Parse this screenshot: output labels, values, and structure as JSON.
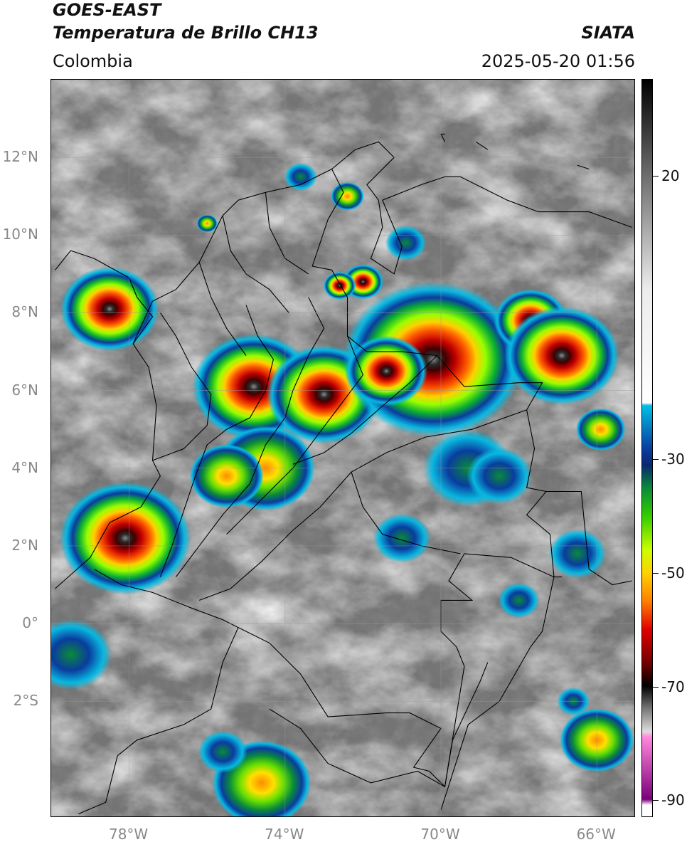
{
  "header": {
    "satellite": "GOES-EAST",
    "product": "Temperatura de Brillo CH13",
    "region": "Colombia",
    "organization": "SIATA",
    "timestamp": "2025-05-20 01:56"
  },
  "axes": {
    "lat_labels": [
      "12°N",
      "10°N",
      "8°N",
      "6°N",
      "4°N",
      "2°N",
      "0°",
      "2°S"
    ],
    "lon_labels": [
      "78°W",
      "74°W",
      "70°W",
      "66°W"
    ],
    "lat_range": [
      -5,
      14
    ],
    "lon_range": [
      -80,
      -65
    ]
  },
  "colorbar": {
    "labels": [
      "20",
      "-30",
      "-50",
      "-70",
      "-90"
    ],
    "values": [
      20,
      -30,
      -50,
      -70,
      -90
    ],
    "range": [
      -93,
      37
    ],
    "gradient_stops": [
      {
        "t": 37,
        "color": "#000000"
      },
      {
        "t": 20,
        "color": "#6e6e6e"
      },
      {
        "t": 0,
        "color": "#ececec"
      },
      {
        "t": -20,
        "color": "#ffffff"
      },
      {
        "t": -20.5,
        "color": "#00bfe6"
      },
      {
        "t": -28,
        "color": "#0a3fa0"
      },
      {
        "t": -31,
        "color": "#0b2670"
      },
      {
        "t": -35,
        "color": "#0a8a3a"
      },
      {
        "t": -40,
        "color": "#33cc00"
      },
      {
        "t": -46,
        "color": "#ccff00"
      },
      {
        "t": -50,
        "color": "#ffd200"
      },
      {
        "t": -55,
        "color": "#ff8000"
      },
      {
        "t": -60,
        "color": "#e00000"
      },
      {
        "t": -66,
        "color": "#700000"
      },
      {
        "t": -70,
        "color": "#000000"
      },
      {
        "t": -74,
        "color": "#777777"
      },
      {
        "t": -78,
        "color": "#dddddd"
      },
      {
        "t": -79,
        "color": "#ff88dd"
      },
      {
        "t": -90,
        "color": "#7a007a"
      },
      {
        "t": -91,
        "color": "#ffffff"
      }
    ]
  },
  "storms": [
    {
      "lon": -78.5,
      "lat": 8.1,
      "intensity": 1.0,
      "size": 1.2
    },
    {
      "lon": -78.1,
      "lat": 2.2,
      "intensity": 1.0,
      "size": 1.6
    },
    {
      "lon": -74.8,
      "lat": 6.1,
      "intensity": 0.95,
      "size": 1.5
    },
    {
      "lon": -73.0,
      "lat": 5.9,
      "intensity": 0.8,
      "size": 1.4
    },
    {
      "lon": -70.2,
      "lat": 6.8,
      "intensity": 1.0,
      "size": 2.2
    },
    {
      "lon": -71.4,
      "lat": 6.5,
      "intensity": 0.85,
      "size": 1.0
    },
    {
      "lon": -67.7,
      "lat": 7.8,
      "intensity": 0.9,
      "size": 0.9
    },
    {
      "lon": -66.9,
      "lat": 6.9,
      "intensity": 0.9,
      "size": 1.4
    },
    {
      "lon": -65.9,
      "lat": 5.0,
      "intensity": 0.7,
      "size": 0.6
    },
    {
      "lon": -74.5,
      "lat": 4.0,
      "intensity": 0.7,
      "size": 1.2
    },
    {
      "lon": -75.5,
      "lat": 3.8,
      "intensity": 0.65,
      "size": 0.9
    },
    {
      "lon": -72.0,
      "lat": 8.8,
      "intensity": 0.85,
      "size": 0.5
    },
    {
      "lon": -72.6,
      "lat": 8.7,
      "intensity": 0.8,
      "size": 0.4
    },
    {
      "lon": -73.6,
      "lat": 11.5,
      "intensity": 0.45,
      "size": 0.4
    },
    {
      "lon": -72.4,
      "lat": 11.0,
      "intensity": 0.6,
      "size": 0.4
    },
    {
      "lon": -76.0,
      "lat": 10.3,
      "intensity": 0.7,
      "size": 0.25
    },
    {
      "lon": -70.9,
      "lat": 9.8,
      "intensity": 0.45,
      "size": 0.5
    },
    {
      "lon": -69.3,
      "lat": 4.0,
      "intensity": 0.3,
      "size": 1.1
    },
    {
      "lon": -68.5,
      "lat": 3.8,
      "intensity": 0.35,
      "size": 0.8
    },
    {
      "lon": -74.6,
      "lat": -4.1,
      "intensity": 0.7,
      "size": 1.2
    },
    {
      "lon": -75.6,
      "lat": -3.3,
      "intensity": 0.4,
      "size": 0.6
    },
    {
      "lon": -66.0,
      "lat": -3.0,
      "intensity": 0.65,
      "size": 0.9
    },
    {
      "lon": -66.6,
      "lat": -2.0,
      "intensity": 0.4,
      "size": 0.4
    },
    {
      "lon": -79.5,
      "lat": -0.8,
      "intensity": 0.25,
      "size": 1.0
    },
    {
      "lon": -71.0,
      "lat": 2.2,
      "intensity": 0.3,
      "size": 0.7
    },
    {
      "lon": -68.0,
      "lat": 0.6,
      "intensity": 0.3,
      "size": 0.5
    },
    {
      "lon": -66.5,
      "lat": 1.8,
      "intensity": 0.3,
      "size": 0.7
    }
  ]
}
